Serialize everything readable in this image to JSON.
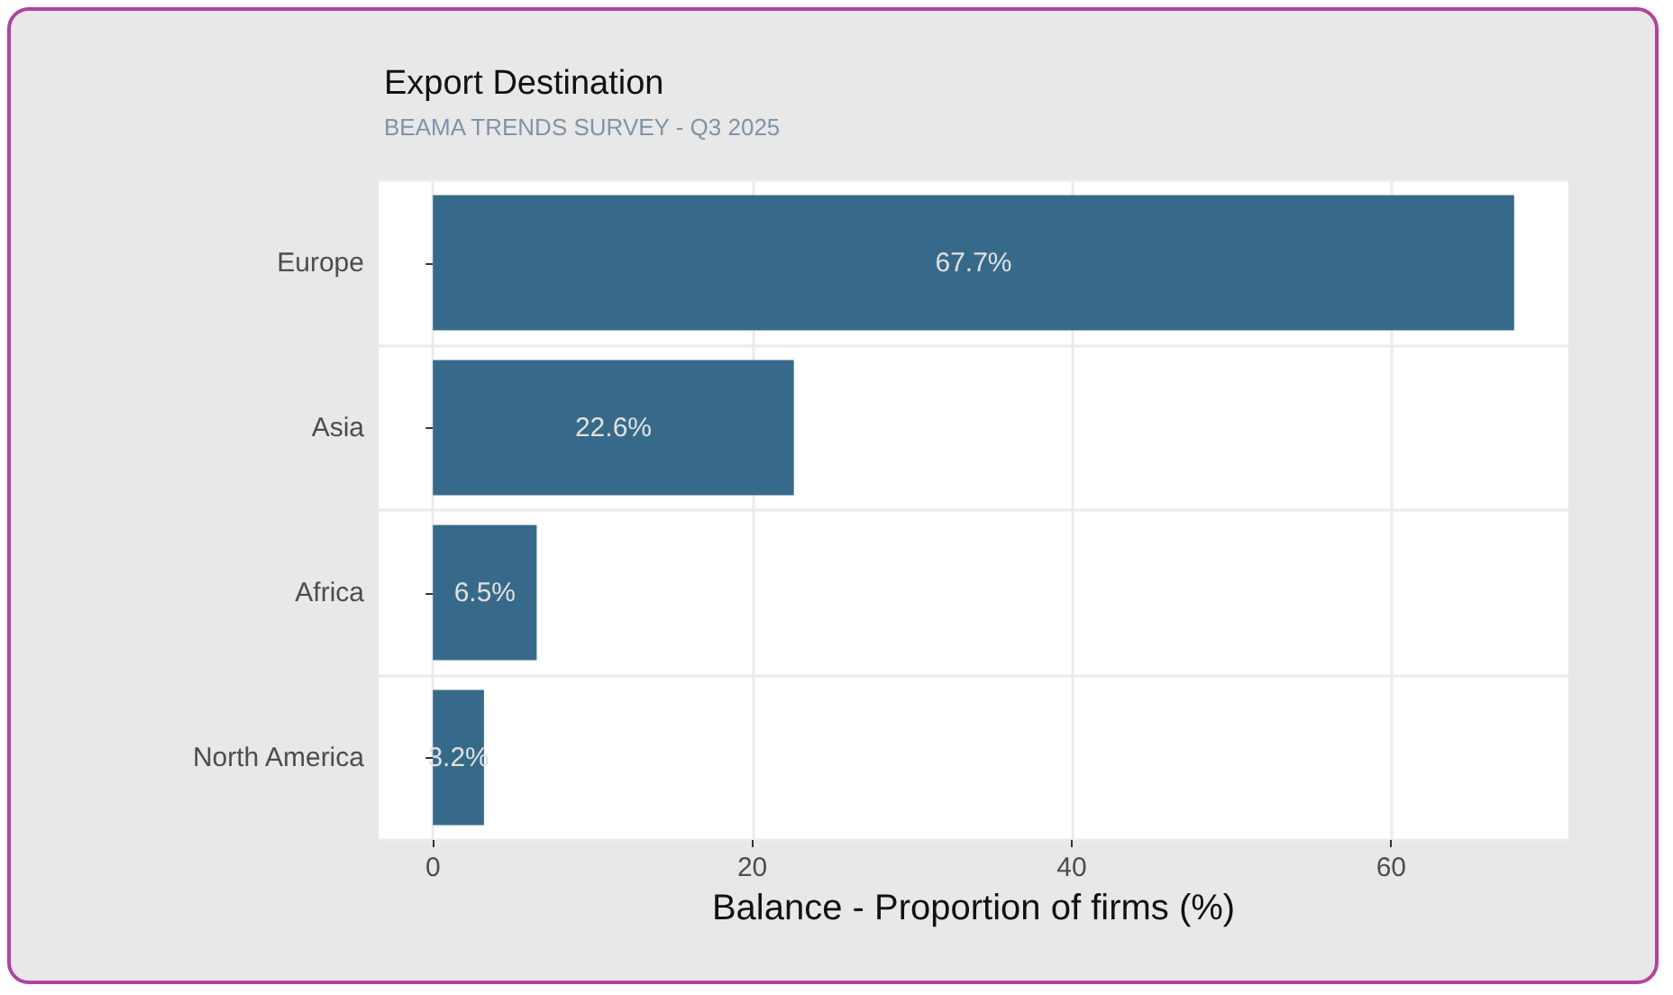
{
  "chart_data": {
    "type": "bar",
    "orientation": "horizontal",
    "title": "Export Destination",
    "subtitle": "BEAMA TRENDS SURVEY - Q3 2025",
    "xlabel": "Balance - Proportion of firms (%)",
    "categories": [
      "Europe",
      "Asia",
      "Africa",
      "North America"
    ],
    "values": [
      67.7,
      22.6,
      6.5,
      3.2
    ],
    "value_labels": [
      "67.7%",
      "22.6%",
      "6.5%",
      "3.2%"
    ],
    "color": "#376a8a",
    "xlim": [
      -3.4,
      71.1
    ],
    "xticks": [
      0,
      20,
      40,
      60
    ],
    "grid": true
  }
}
